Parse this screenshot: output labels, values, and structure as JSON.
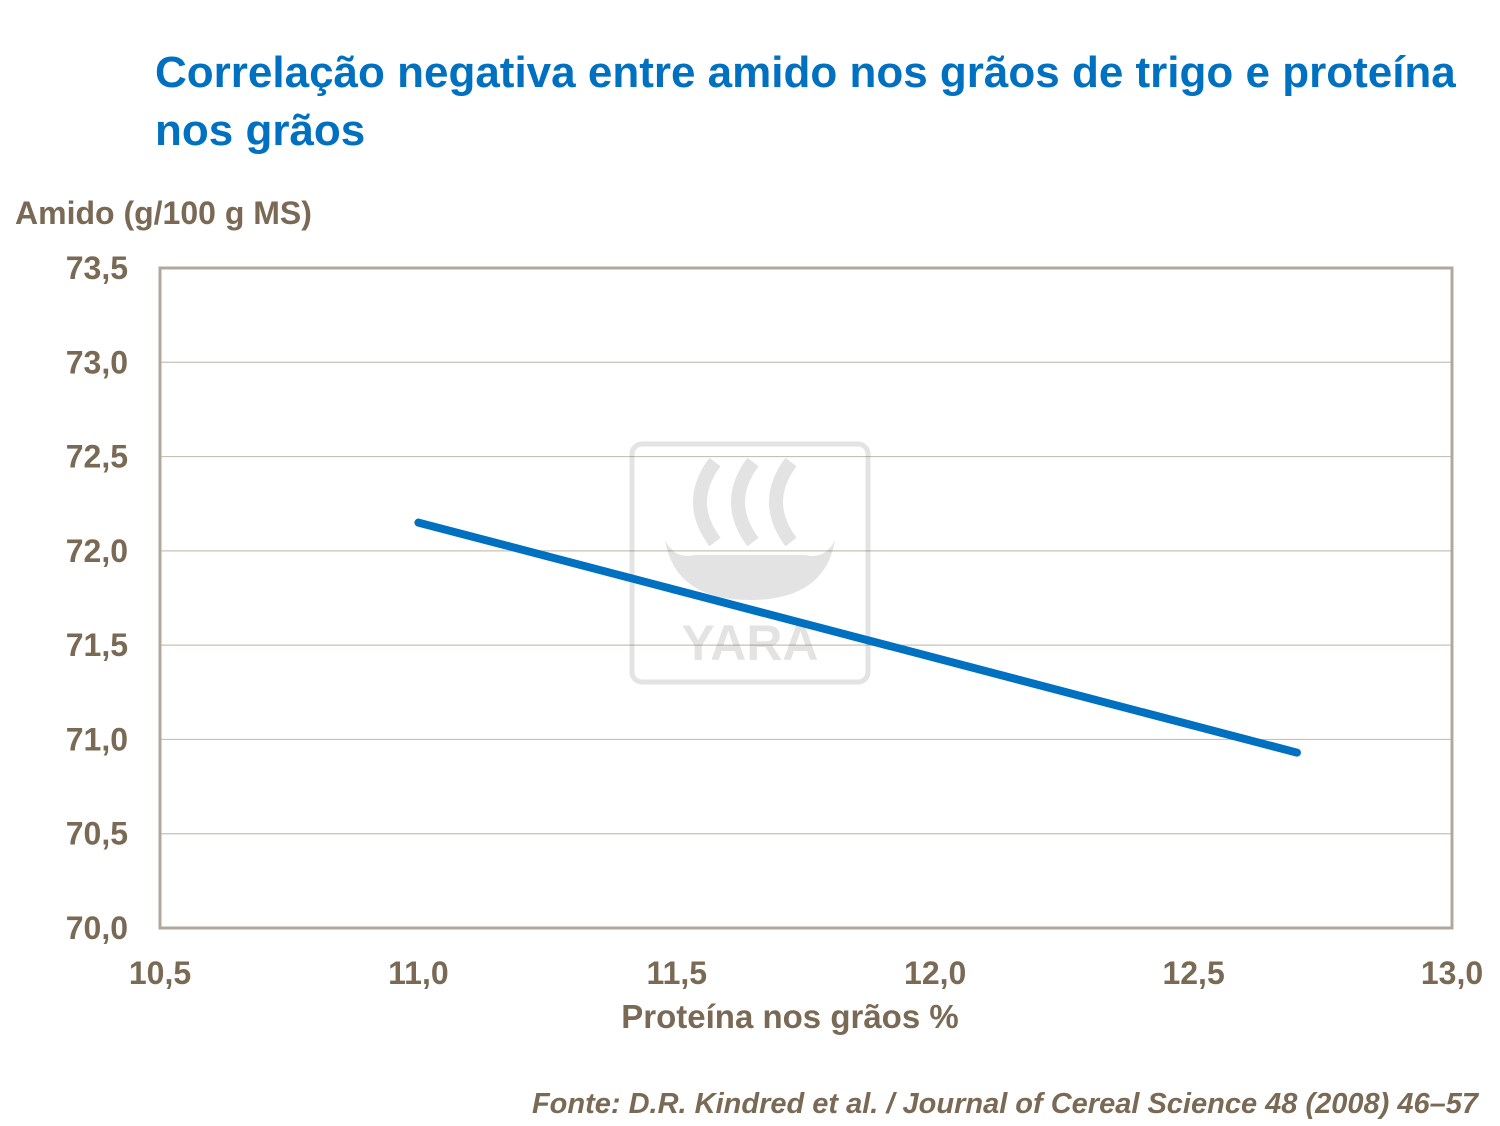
{
  "colors": {
    "title": "#0070C0",
    "line": "#0070C0",
    "text": "#7A6A55",
    "axis": "#B0A89C",
    "grid": "#C8C0B4"
  },
  "watermark": {
    "text": "YARA",
    "icon": "yara-viking-ship-logo"
  },
  "chart_data": {
    "type": "line",
    "title": "Correlação negativa entre amido nos grãos de trigo e proteína nos grãos",
    "xlabel": "Proteína nos grãos %",
    "ylabel": "Amido (g/100 g MS)",
    "xlim": [
      10.5,
      13.0
    ],
    "ylim": [
      70.0,
      73.5
    ],
    "xticks": [
      "10,5",
      "11,0",
      "11,5",
      "12,0",
      "12,5",
      "13,0"
    ],
    "yticks": [
      "70,0",
      "70,5",
      "71,0",
      "71,5",
      "72,0",
      "72,5",
      "73,0",
      "73,5"
    ],
    "grid": "horizontal",
    "series": [
      {
        "x": [
          11.0,
          12.7
        ],
        "y": [
          72.15,
          70.93
        ]
      }
    ],
    "source": "Fonte: D.R. Kindred et al. / Journal of Cereal Science 48 (2008) 46–57"
  }
}
